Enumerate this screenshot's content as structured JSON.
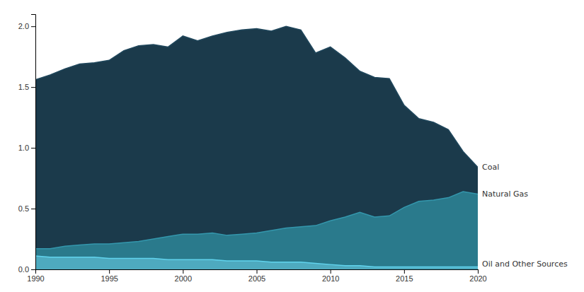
{
  "chart_data": {
    "type": "area",
    "x": [
      1990,
      1991,
      1992,
      1993,
      1994,
      1995,
      1996,
      1997,
      1998,
      1999,
      2000,
      2001,
      2002,
      2003,
      2004,
      2005,
      2006,
      2007,
      2008,
      2009,
      2010,
      2011,
      2012,
      2013,
      2014,
      2015,
      2016,
      2017,
      2018,
      2019,
      2020
    ],
    "series": [
      {
        "name": "Coal",
        "color": "#1b3a4b",
        "values": [
          1.56,
          1.6,
          1.65,
          1.69,
          1.7,
          1.72,
          1.8,
          1.84,
          1.85,
          1.83,
          1.92,
          1.88,
          1.92,
          1.95,
          1.97,
          1.98,
          1.96,
          2.0,
          1.97,
          1.78,
          1.83,
          1.74,
          1.63,
          1.58,
          1.57,
          1.35,
          1.24,
          1.21,
          1.15,
          0.97,
          0.84
        ]
      },
      {
        "name": "Natural Gas",
        "color": "#2a7a8c",
        "values": [
          0.17,
          0.17,
          0.19,
          0.2,
          0.21,
          0.21,
          0.22,
          0.23,
          0.25,
          0.27,
          0.29,
          0.29,
          0.3,
          0.28,
          0.29,
          0.3,
          0.32,
          0.34,
          0.35,
          0.36,
          0.4,
          0.43,
          0.47,
          0.43,
          0.44,
          0.51,
          0.56,
          0.57,
          0.59,
          0.64,
          0.62
        ]
      },
      {
        "name": "Oil and Other Sources",
        "color": "#4eaabf",
        "values": [
          0.11,
          0.1,
          0.1,
          0.1,
          0.1,
          0.09,
          0.09,
          0.09,
          0.09,
          0.08,
          0.08,
          0.08,
          0.08,
          0.07,
          0.07,
          0.07,
          0.06,
          0.06,
          0.06,
          0.05,
          0.04,
          0.03,
          0.03,
          0.02,
          0.02,
          0.02,
          0.02,
          0.02,
          0.02,
          0.02,
          0.02
        ]
      }
    ],
    "xlim": [
      1990,
      2020
    ],
    "xticks": [
      1990,
      1995,
      2000,
      2005,
      2010,
      2015,
      2020
    ],
    "ylim": [
      0,
      2.1
    ],
    "yticks": [
      {
        "value": 0,
        "label": "0.0"
      },
      0.5,
      {
        "value": 1.0,
        "label": "1.0"
      },
      1.5,
      {
        "value": 2.0,
        "label": "2.0"
      }
    ],
    "grid": false
  }
}
